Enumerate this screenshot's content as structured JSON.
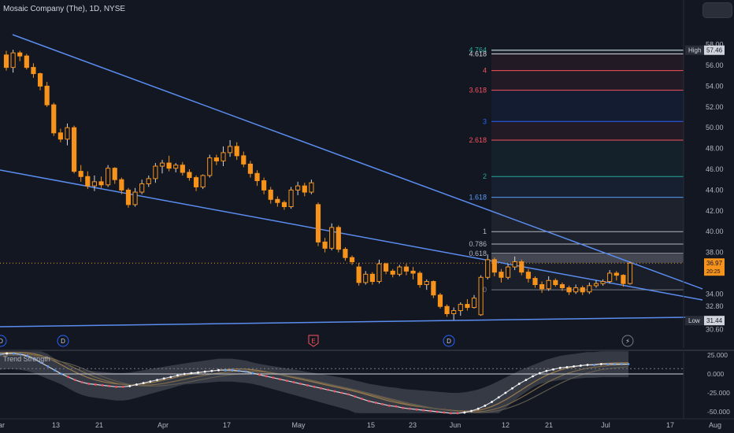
{
  "header": {
    "title": "Mosaic Company (The), 1D, NYSE"
  },
  "indicator": {
    "label": "Trend Strength"
  },
  "chart_data": {
    "type": "candlestick",
    "price_axis": {
      "min": 30.0,
      "max": 58.0,
      "ticks": [
        58.0,
        56.0,
        54.0,
        52.0,
        50.0,
        48.0,
        46.0,
        44.0,
        42.0,
        40.0,
        38.0,
        36.0,
        34.0,
        32.8,
        30.6
      ]
    },
    "x_labels": [
      "ar",
      "13",
      "21",
      "Apr",
      "17",
      "May",
      "15",
      "23",
      "Jun",
      "12",
      "21",
      "Jul",
      "17",
      "Aug"
    ],
    "last_price": {
      "value": "36.97",
      "sub": "20:25",
      "color": "#f7931a"
    },
    "high": {
      "label": "High",
      "value": "57.46"
    },
    "low": {
      "label": "Low",
      "value": "31.44"
    },
    "fib_levels": [
      {
        "label": "4.764",
        "price": 57.46,
        "color": "#26a69a"
      },
      {
        "label": "4.618",
        "price": 57.1,
        "color": "#d1d4dc"
      },
      {
        "label": "4",
        "price": 55.5,
        "color": "#f7525f"
      },
      {
        "label": "3.618",
        "price": 53.6,
        "color": "#f7525f"
      },
      {
        "label": "3",
        "price": 50.6,
        "color": "#2962ff"
      },
      {
        "label": "2.618",
        "price": 48.8,
        "color": "#f7525f"
      },
      {
        "label": "2",
        "price": 45.3,
        "color": "#26a69a"
      },
      {
        "label": "1.618",
        "price": 43.3,
        "color": "#5b9cf6"
      },
      {
        "label": "1",
        "price": 40.0,
        "color": "#b2b5be"
      },
      {
        "label": "0.786",
        "price": 38.8,
        "color": "#b2b5be"
      },
      {
        "label": "0.618",
        "price": 37.9,
        "color": "#b2b5be"
      },
      {
        "label": "0",
        "price": 34.4,
        "color": "#787b86"
      }
    ],
    "candles": [
      [
        57.0,
        57.4,
        55.5,
        55.8
      ],
      [
        55.8,
        57.5,
        55.3,
        57.2
      ],
      [
        57.2,
        57.4,
        56.4,
        56.9
      ],
      [
        56.9,
        57.1,
        55.6,
        55.8
      ],
      [
        55.8,
        56.2,
        54.8,
        55.2
      ],
      [
        55.2,
        55.3,
        53.6,
        54.0
      ],
      [
        54.0,
        54.4,
        52.0,
        52.2
      ],
      [
        52.2,
        52.4,
        49.2,
        49.5
      ],
      [
        49.5,
        49.9,
        48.6,
        48.9
      ],
      [
        48.9,
        50.4,
        48.3,
        50.0
      ],
      [
        50.0,
        50.2,
        45.6,
        45.8
      ],
      [
        45.8,
        46.4,
        44.8,
        45.3
      ],
      [
        45.3,
        45.8,
        44.1,
        44.4
      ],
      [
        44.4,
        45.4,
        43.9,
        44.8
      ],
      [
        44.8,
        45.3,
        44.2,
        44.5
      ],
      [
        44.5,
        46.4,
        44.3,
        46.1
      ],
      [
        46.1,
        46.2,
        44.6,
        45.0
      ],
      [
        45.0,
        45.2,
        43.6,
        44.0
      ],
      [
        44.0,
        44.2,
        42.3,
        42.6
      ],
      [
        42.6,
        44.2,
        42.4,
        43.8
      ],
      [
        43.8,
        45.0,
        43.6,
        44.6
      ],
      [
        44.6,
        45.4,
        44.3,
        45.1
      ],
      [
        45.1,
        46.6,
        44.7,
        46.3
      ],
      [
        46.3,
        46.9,
        45.6,
        46.6
      ],
      [
        46.6,
        47.3,
        45.8,
        46.1
      ],
      [
        46.1,
        46.6,
        45.7,
        46.4
      ],
      [
        46.4,
        46.7,
        45.4,
        45.7
      ],
      [
        45.7,
        46.0,
        44.9,
        45.2
      ],
      [
        45.2,
        45.4,
        43.9,
        44.3
      ],
      [
        44.3,
        45.5,
        44.1,
        45.4
      ],
      [
        45.4,
        47.4,
        45.2,
        47.1
      ],
      [
        47.1,
        47.4,
        46.4,
        46.8
      ],
      [
        46.8,
        48.2,
        46.3,
        47.6
      ],
      [
        47.6,
        48.8,
        47.2,
        48.2
      ],
      [
        48.2,
        48.6,
        46.9,
        47.3
      ],
      [
        47.3,
        47.7,
        46.2,
        46.5
      ],
      [
        46.5,
        46.8,
        45.2,
        45.6
      ],
      [
        45.6,
        45.9,
        44.4,
        44.9
      ],
      [
        44.9,
        45.2,
        43.6,
        44.0
      ],
      [
        44.0,
        44.3,
        42.7,
        43.1
      ],
      [
        43.1,
        43.4,
        42.4,
        42.8
      ],
      [
        42.8,
        43.0,
        42.1,
        42.4
      ],
      [
        42.4,
        44.3,
        42.2,
        44.0
      ],
      [
        44.0,
        44.8,
        43.5,
        44.4
      ],
      [
        44.4,
        44.7,
        43.4,
        43.8
      ],
      [
        43.8,
        45.0,
        43.6,
        44.7
      ],
      [
        42.6,
        42.8,
        38.6,
        39.0
      ],
      [
        39.0,
        39.4,
        38.0,
        38.4
      ],
      [
        38.4,
        40.8,
        38.2,
        40.4
      ],
      [
        40.4,
        40.6,
        38.0,
        38.3
      ],
      [
        38.3,
        38.5,
        37.2,
        37.5
      ],
      [
        37.5,
        37.7,
        36.8,
        37.1
      ],
      [
        36.6,
        37.0,
        34.8,
        35.1
      ],
      [
        35.1,
        36.2,
        34.9,
        35.9
      ],
      [
        35.9,
        36.1,
        34.9,
        35.2
      ],
      [
        35.2,
        37.3,
        35.0,
        36.9
      ],
      [
        36.9,
        37.0,
        35.9,
        36.2
      ],
      [
        36.2,
        36.4,
        35.6,
        35.9
      ],
      [
        35.9,
        36.8,
        35.7,
        36.6
      ],
      [
        36.6,
        36.9,
        35.8,
        36.2
      ],
      [
        36.2,
        36.6,
        35.4,
        36.0
      ],
      [
        36.0,
        36.2,
        34.6,
        34.9
      ],
      [
        34.9,
        35.4,
        34.4,
        35.2
      ],
      [
        35.2,
        35.3,
        33.6,
        33.9
      ],
      [
        33.9,
        34.1,
        32.6,
        32.8
      ],
      [
        32.8,
        33.0,
        31.8,
        32.1
      ],
      [
        32.1,
        32.7,
        31.5,
        32.4
      ],
      [
        32.4,
        33.2,
        31.9,
        33.0
      ],
      [
        33.0,
        33.5,
        32.4,
        32.7
      ],
      [
        32.7,
        33.9,
        32.6,
        33.6
      ],
      [
        32.0,
        35.8,
        31.9,
        35.6
      ],
      [
        35.6,
        37.8,
        35.4,
        37.3
      ],
      [
        37.3,
        37.5,
        35.7,
        36.1
      ],
      [
        36.1,
        36.4,
        35.1,
        35.6
      ],
      [
        35.6,
        36.9,
        35.4,
        36.6
      ],
      [
        36.6,
        37.6,
        36.3,
        37.1
      ],
      [
        37.1,
        37.3,
        35.8,
        36.1
      ],
      [
        36.1,
        36.4,
        35.1,
        35.5
      ],
      [
        35.5,
        35.7,
        34.6,
        34.9
      ],
      [
        34.9,
        35.2,
        34.1,
        34.5
      ],
      [
        34.5,
        35.7,
        34.3,
        35.3
      ],
      [
        35.3,
        35.5,
        34.7,
        34.9
      ],
      [
        34.9,
        35.1,
        34.3,
        34.6
      ],
      [
        34.6,
        34.8,
        33.9,
        34.2
      ],
      [
        34.2,
        34.9,
        34.0,
        34.6
      ],
      [
        34.6,
        34.8,
        33.9,
        34.2
      ],
      [
        34.2,
        35.1,
        34.0,
        34.8
      ],
      [
        34.8,
        35.3,
        34.6,
        35.0
      ],
      [
        35.0,
        35.4,
        34.8,
        35.2
      ],
      [
        35.2,
        36.3,
        35.0,
        36.0
      ],
      [
        36.0,
        36.2,
        35.3,
        35.8
      ],
      [
        35.8,
        35.9,
        34.7,
        35.0
      ],
      [
        35.0,
        37.1,
        34.9,
        36.97
      ]
    ],
    "indicator_axis": {
      "ticks": [
        "25.000",
        "0.000",
        "-25.000",
        "-50.000"
      ]
    },
    "indicator_values": [
      26,
      27,
      27,
      26,
      24,
      20,
      15,
      10,
      5,
      0,
      -4,
      -8,
      -11,
      -13,
      -14,
      -15,
      -16,
      -17,
      -17,
      -16,
      -14,
      -12,
      -10,
      -8,
      -6,
      -4,
      -2,
      0,
      1,
      2,
      3,
      4,
      5,
      5,
      5,
      4,
      3,
      1,
      -1,
      -3,
      -5,
      -7,
      -9,
      -11,
      -13,
      -15,
      -17,
      -19,
      -21,
      -23,
      -25,
      -27,
      -30,
      -33,
      -36,
      -38,
      -40,
      -42,
      -43,
      -45,
      -46,
      -47,
      -48,
      -49,
      -50,
      -51,
      -52,
      -52,
      -51,
      -49,
      -46,
      -42,
      -37,
      -31,
      -25,
      -19,
      -13,
      -8,
      -3,
      1,
      4,
      6,
      8,
      9,
      10,
      11,
      12,
      12,
      13,
      13,
      13,
      13,
      13
    ]
  }
}
